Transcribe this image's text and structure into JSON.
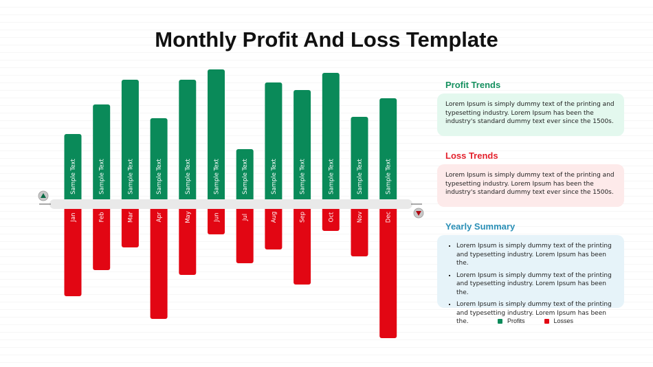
{
  "title": "Monthly Profit And Loss Template",
  "colors": {
    "profit": "#0a8a59",
    "loss": "#e20613",
    "profit_heading": "#15905f",
    "loss_heading": "#e3212c",
    "summary_heading": "#2a8fb6",
    "profit_box": "#e3f8ee",
    "loss_box": "#fdeaea",
    "summary_box": "#e6f3f9"
  },
  "chart_data": {
    "type": "bar",
    "categories": [
      "Jan",
      "Feb",
      "Mar",
      "Apr",
      "May",
      "Jun",
      "Jul",
      "Aug",
      "Sep",
      "Oct",
      "Nov",
      "Dec"
    ],
    "bar_text": "Sample Text",
    "series": [
      {
        "name": "Profits",
        "values": [
          98,
          141,
          177,
          121,
          177,
          192,
          76,
          173,
          162,
          187,
          123,
          150
        ]
      },
      {
        "name": "Losses",
        "values": [
          -130,
          -92,
          -59,
          -163,
          -99,
          -40,
          -82,
          -62,
          -113,
          -35,
          -72,
          -191
        ]
      }
    ],
    "ylim": [
      -200,
      200
    ],
    "grid": false,
    "legend_position": "bottom-right"
  },
  "panels": {
    "profit": {
      "heading": "Profit Trends",
      "text": "Lorem Ipsum is simply dummy text of the printing and typesetting industry. Lorem Ipsum has been the industry's standard dummy text ever since the 1500s."
    },
    "loss": {
      "heading": "Loss Trends",
      "text": "Lorem Ipsum is simply dummy text of the printing and typesetting industry. Lorem Ipsum has been the industry's standard dummy text ever since the 1500s."
    },
    "summary": {
      "heading": "Yearly Summary",
      "bullets": [
        "Lorem Ipsum is simply dummy text of the printing and typesetting industry. Lorem Ipsum has been the.",
        "Lorem Ipsum is simply dummy text of the printing and typesetting industry. Lorem Ipsum has been the.",
        "Lorem Ipsum is simply dummy text of the printing and typesetting industry. Lorem Ipsum has been the."
      ]
    }
  },
  "legend": {
    "profits": "Profits",
    "losses": "Losses"
  },
  "icons": {
    "up": "triangle-up-icon",
    "down": "triangle-down-icon"
  }
}
